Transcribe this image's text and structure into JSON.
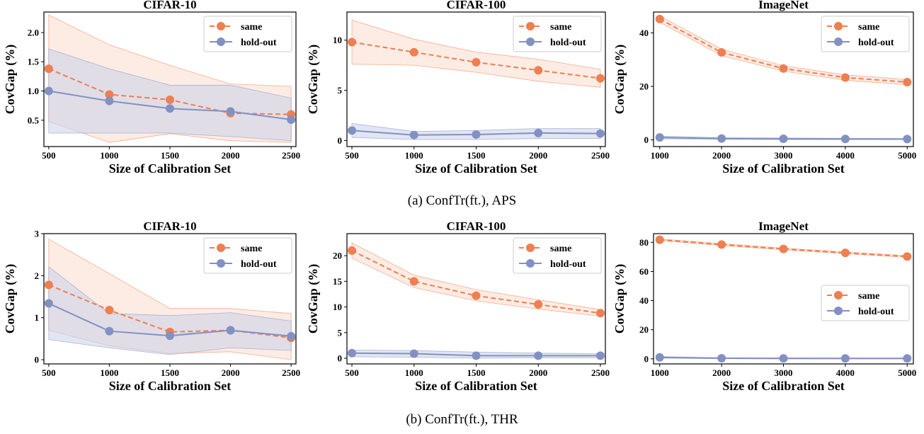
{
  "captions": [
    "(a) ConfTr(ft.), APS",
    "(b) ConfTr(ft.), THR"
  ],
  "colors": {
    "same": "#EE7F50",
    "holdout": "#8291C2",
    "same_band": "#FBDDCE",
    "holdout_band": "#C9D1EA"
  },
  "chart_data": [
    {
      "type": "line",
      "title": "CIFAR-10",
      "xlabel": "Size of Calibration Set",
      "ylabel": "CovGap (%)",
      "x": [
        500,
        1000,
        1500,
        2000,
        2500
      ],
      "xlim": [
        460,
        2540
      ],
      "ylim": [
        0.05,
        2.35
      ],
      "yticks": [
        0.5,
        1.0,
        1.5,
        2.0
      ],
      "ytick_labels": [
        "0.5",
        "1.0",
        "1.5",
        "2.0"
      ],
      "legend": "top-right",
      "series": [
        {
          "name": "same",
          "values": [
            1.38,
            0.94,
            0.85,
            0.62,
            0.6
          ],
          "lower": [
            0.48,
            0.12,
            0.27,
            0.15,
            0.12
          ],
          "upper": [
            2.3,
            1.79,
            1.44,
            1.12,
            1.08
          ]
        },
        {
          "name": "hold-out",
          "values": [
            1.0,
            0.83,
            0.7,
            0.65,
            0.51
          ],
          "lower": [
            0.28,
            0.28,
            0.28,
            0.22,
            0.15
          ],
          "upper": [
            1.72,
            1.38,
            1.1,
            1.1,
            0.88
          ]
        }
      ]
    },
    {
      "type": "line",
      "title": "CIFAR-100",
      "xlabel": "Size of Calibration Set",
      "ylabel": "CovGap (%)",
      "x": [
        500,
        1000,
        1500,
        2000,
        2500
      ],
      "xlim": [
        460,
        2540
      ],
      "ylim": [
        -0.6,
        12.8
      ],
      "yticks": [
        0,
        5,
        10
      ],
      "ytick_labels": [
        "0",
        "5",
        "10"
      ],
      "legend": "top-right",
      "series": [
        {
          "name": "same",
          "values": [
            9.8,
            8.8,
            7.8,
            7.0,
            6.2
          ],
          "lower": [
            7.6,
            7.5,
            6.8,
            5.9,
            5.3
          ],
          "upper": [
            12.0,
            10.1,
            8.8,
            8.1,
            7.1
          ]
        },
        {
          "name": "hold-out",
          "values": [
            1.0,
            0.55,
            0.6,
            0.75,
            0.7
          ],
          "lower": [
            0.3,
            0.1,
            0.1,
            0.2,
            0.2
          ],
          "upper": [
            1.7,
            0.9,
            1.0,
            1.2,
            1.2
          ]
        }
      ]
    },
    {
      "type": "line",
      "title": "ImageNet",
      "xlabel": "Size of Calibration Set",
      "ylabel": "CovGap (%)",
      "x": [
        1000,
        2000,
        3000,
        4000,
        5000
      ],
      "xlim": [
        900,
        5100
      ],
      "ylim": [
        -2.5,
        47.8
      ],
      "yticks": [
        0,
        20,
        40
      ],
      "ytick_labels": [
        "0",
        "20",
        "40"
      ],
      "legend": "top-right",
      "series": [
        {
          "name": "same",
          "values": [
            45.2,
            32.7,
            26.7,
            23.3,
            21.6
          ],
          "lower": [
            44.0,
            31.5,
            25.7,
            22.3,
            20.6
          ],
          "upper": [
            46.4,
            33.9,
            27.7,
            24.3,
            22.6
          ]
        },
        {
          "name": "hold-out",
          "values": [
            0.9,
            0.5,
            0.4,
            0.35,
            0.3
          ],
          "lower": [
            0.4,
            0.2,
            0.1,
            0.1,
            0.1
          ],
          "upper": [
            1.4,
            0.8,
            0.7,
            0.6,
            0.5
          ]
        }
      ]
    },
    {
      "type": "line",
      "title": "CIFAR-10",
      "xlabel": "Size of Calibration Set",
      "ylabel": "CovGap (%)",
      "x": [
        500,
        1000,
        1500,
        2000,
        2500
      ],
      "xlim": [
        460,
        2540
      ],
      "ylim": [
        -0.1,
        3.0
      ],
      "yticks": [
        0,
        1,
        2,
        3
      ],
      "ytick_labels": [
        "0",
        "1",
        "2",
        "3"
      ],
      "legend": "top-right",
      "series": [
        {
          "name": "same",
          "values": [
            1.78,
            1.18,
            0.66,
            0.7,
            0.52
          ],
          "lower": [
            0.7,
            0.33,
            0.15,
            0.19,
            0.0
          ],
          "upper": [
            2.87,
            2.05,
            1.22,
            1.22,
            1.1
          ]
        },
        {
          "name": "hold-out",
          "values": [
            1.34,
            0.68,
            0.57,
            0.7,
            0.56
          ],
          "lower": [
            0.48,
            0.28,
            0.12,
            0.28,
            0.22
          ],
          "upper": [
            2.21,
            1.1,
            1.05,
            1.12,
            0.92
          ]
        }
      ]
    },
    {
      "type": "line",
      "title": "CIFAR-100",
      "xlabel": "Size of Calibration Set",
      "ylabel": "CovGap (%)",
      "x": [
        500,
        1000,
        1500,
        2000,
        2500
      ],
      "xlim": [
        460,
        2540
      ],
      "ylim": [
        -1.1,
        24.3
      ],
      "yticks": [
        0,
        5,
        10,
        15,
        20
      ],
      "ytick_labels": [
        "0",
        "5",
        "10",
        "15",
        "20"
      ],
      "legend": "top-right",
      "series": [
        {
          "name": "same",
          "values": [
            21.0,
            15.0,
            12.2,
            10.5,
            8.8
          ],
          "lower": [
            19.5,
            13.8,
            11.2,
            9.6,
            8.2
          ],
          "upper": [
            22.5,
            16.2,
            13.4,
            11.4,
            9.5
          ]
        },
        {
          "name": "hold-out",
          "values": [
            1.0,
            0.9,
            0.5,
            0.5,
            0.5
          ],
          "lower": [
            0.3,
            0.2,
            0.0,
            0.1,
            0.1
          ],
          "upper": [
            1.6,
            1.5,
            1.2,
            1.0,
            0.9
          ]
        }
      ]
    },
    {
      "type": "line",
      "title": "ImageNet",
      "xlabel": "Size of Calibration Set",
      "ylabel": "CovGap (%)",
      "x": [
        1000,
        2000,
        3000,
        4000,
        5000
      ],
      "xlim": [
        900,
        5100
      ],
      "ylim": [
        -3.5,
        86.0
      ],
      "yticks": [
        0,
        20,
        40,
        60,
        80
      ],
      "ytick_labels": [
        "0",
        "20",
        "40",
        "60",
        "80"
      ],
      "legend": "center-right",
      "series": [
        {
          "name": "same",
          "values": [
            81.8,
            78.5,
            75.5,
            72.8,
            70.3
          ],
          "lower": [
            81.2,
            77.9,
            74.9,
            72.2,
            69.7
          ],
          "upper": [
            82.4,
            79.1,
            76.1,
            73.4,
            70.9
          ]
        },
        {
          "name": "hold-out",
          "values": [
            1.0,
            0.4,
            0.3,
            0.3,
            0.3
          ],
          "lower": [
            0.5,
            0.1,
            0.0,
            0.0,
            0.0
          ],
          "upper": [
            1.5,
            0.8,
            0.7,
            0.6,
            0.6
          ]
        }
      ]
    }
  ]
}
